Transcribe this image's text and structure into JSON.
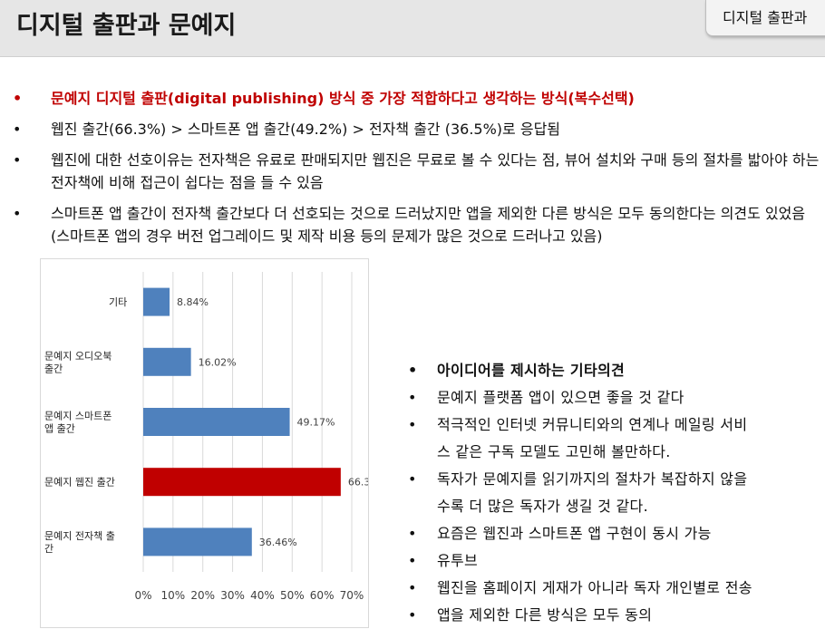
{
  "slide": {
    "title": "디지털 출판과 문예지",
    "section_tab": "디지털 출판과"
  },
  "bullets": [
    "문예지 디지털 출판(digital publishing) 방식 중 가장 적합하다고 생각하는 방식(복수선택)",
    "웹진 출간(66.3%) > 스마트폰 앱 출간(49.2%) > 전자책 출간 (36.5%)로 응답됨",
    "웹진에 대한 선호이유는 전자책은 유료로 판매되지만 웹진은 무료로 볼 수 있다는 점, 뷰어 설치와 구매 등의 절차를 밟아야 하는 전자책에 비해 접근이 쉽다는 점을 들 수 있음",
    "스마트폰 앱 출간이 전자책 출간보다 더 선호되는 것으로 드러났지만 앱을 제외한 다른 방식은 모두 동의한다는 의견도 있었음 (스마트폰 앱의 경우 버전 업그레이드 및 제작 비용 등의 문제가 많은 것으로 드러나고 있음)"
  ],
  "bullet_marker": "•",
  "chart_data": {
    "type": "bar",
    "orientation": "horizontal",
    "categories": [
      "기타",
      "문예지 오디오북 출간",
      "문예지 스마트폰 앱 출간",
      "문예지 웹진 출간",
      "문예지 전자책 출간"
    ],
    "category_lines": [
      [
        "기타"
      ],
      [
        "문예지 오디오북",
        "출간"
      ],
      [
        "문예지 스마트폰",
        "앱 출간"
      ],
      [
        "문예지 웹진 출간"
      ],
      [
        "문예지 전자책 출",
        "간"
      ]
    ],
    "values": [
      8.84,
      16.02,
      49.17,
      66.3,
      36.46
    ],
    "data_labels": [
      "8.84%",
      "16.02%",
      "49.17%",
      "66.3",
      "36.46%"
    ],
    "x_ticks": [
      "0%",
      "10%",
      "20%",
      "30%",
      "40%",
      "50%",
      "60%",
      "70%"
    ],
    "xlim": [
      0,
      70
    ],
    "grid": true,
    "colors": {
      "default": "#4f81bd",
      "highlight": "#c00000"
    },
    "highlight_category": "문예지 웹진 출간"
  },
  "ideas": [
    "아이디어를 제시하는 기타의견",
    "문예지 플랫폼 앱이 있으면 좋을 것 같다",
    "적극적인 인터넷 커뮤니티와의 연계나 메일링 서비",
    "스 같은 구독 모델도 고민해 볼만하다.",
    "독자가 문예지를 읽기까지의 절차가 복잡하지 않을",
    "수록 더 많은 독자가 생길 것 같다.",
    "요즘은 웹진과 스마트폰 앱 구현이 동시 가능",
    "유투브",
    "웹진을 홈페이지 게재가 아니라 독자 개인별로 전송",
    "앱을 제외한 다른 방식은 모두 동의"
  ]
}
